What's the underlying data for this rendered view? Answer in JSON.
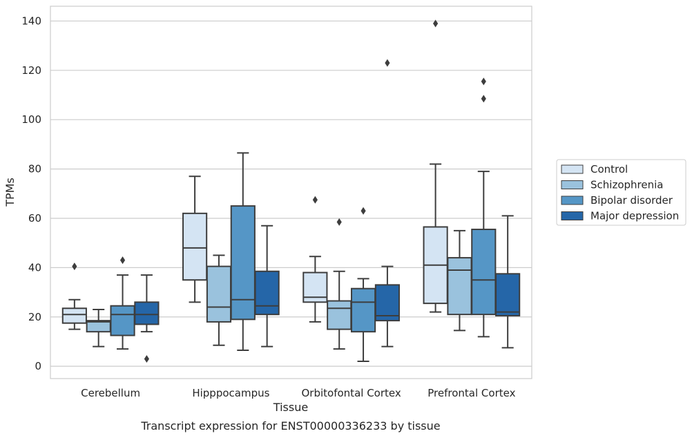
{
  "chart_data": {
    "type": "boxplot",
    "title": "Transcript expression for ENST00000336233 by tissue",
    "xlabel": "Tissue",
    "ylabel": "TPMs",
    "ylim": [
      -5,
      146
    ],
    "yticks": [
      0,
      20,
      40,
      60,
      80,
      100,
      120,
      140
    ],
    "grid": true,
    "legend_position": "right",
    "categories": [
      "Cerebellum",
      "Hipppocampus",
      "Orbitofontal Cortex",
      "Prefrontal Cortex"
    ],
    "series": [
      {
        "name": "Control",
        "color": "#d4e4f3",
        "boxes": [
          {
            "whisker_low": 15,
            "q1": 17.5,
            "median": 21,
            "q3": 23.5,
            "whisker_high": 27,
            "outliers": [
              40.5
            ]
          },
          {
            "whisker_low": 26,
            "q1": 35,
            "median": 48,
            "q3": 62,
            "whisker_high": 77,
            "outliers": []
          },
          {
            "whisker_low": 18,
            "q1": 26,
            "median": 28,
            "q3": 38,
            "whisker_high": 44.5,
            "outliers": [
              67.5
            ]
          },
          {
            "whisker_low": 22,
            "q1": 25.5,
            "median": 41,
            "q3": 56.5,
            "whisker_high": 82,
            "outliers": [
              139
            ]
          }
        ]
      },
      {
        "name": "Schizophrenia",
        "color": "#9ac2dd",
        "boxes": [
          {
            "whisker_low": 8,
            "q1": 14,
            "median": 18,
            "q3": 18.5,
            "whisker_high": 23,
            "outliers": []
          },
          {
            "whisker_low": 8.5,
            "q1": 18,
            "median": 24,
            "q3": 40.5,
            "whisker_high": 45,
            "outliers": []
          },
          {
            "whisker_low": 7,
            "q1": 15,
            "median": 23.5,
            "q3": 26.5,
            "whisker_high": 38.5,
            "outliers": [
              58.5
            ]
          },
          {
            "whisker_low": 14.5,
            "q1": 21,
            "median": 39,
            "q3": 44,
            "whisker_high": 55,
            "outliers": []
          }
        ]
      },
      {
        "name": "Bipolar disorder",
        "color": "#5596c6",
        "boxes": [
          {
            "whisker_low": 7,
            "q1": 12.5,
            "median": 21,
            "q3": 24.5,
            "whisker_high": 37,
            "outliers": [
              43
            ]
          },
          {
            "whisker_low": 6.5,
            "q1": 19,
            "median": 27,
            "q3": 65,
            "whisker_high": 86.5,
            "outliers": []
          },
          {
            "whisker_low": 2,
            "q1": 14,
            "median": 26,
            "q3": 31.5,
            "whisker_high": 35.5,
            "outliers": [
              63
            ]
          },
          {
            "whisker_low": 12,
            "q1": 21,
            "median": 35,
            "q3": 55.5,
            "whisker_high": 79,
            "outliers": [
              108.5,
              115.5
            ]
          }
        ]
      },
      {
        "name": "Major depression",
        "color": "#2566a8",
        "boxes": [
          {
            "whisker_low": 14,
            "q1": 17,
            "median": 21,
            "q3": 26,
            "whisker_high": 37,
            "outliers": [
              3
            ]
          },
          {
            "whisker_low": 8,
            "q1": 21,
            "median": 24.5,
            "q3": 38.5,
            "whisker_high": 57,
            "outliers": []
          },
          {
            "whisker_low": 8,
            "q1": 18.5,
            "median": 20.5,
            "q3": 33,
            "whisker_high": 40.5,
            "outliers": [
              123
            ]
          },
          {
            "whisker_low": 7.5,
            "q1": 20.5,
            "median": 22,
            "q3": 37.5,
            "whisker_high": 61,
            "outliers": []
          }
        ]
      }
    ]
  }
}
